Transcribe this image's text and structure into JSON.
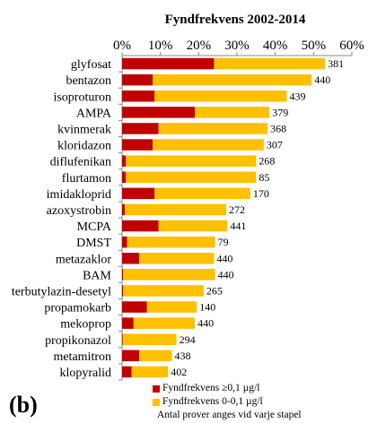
{
  "panel_label": "(b)",
  "legend": {
    "items": [
      {
        "label": "Fyndfrekvens ≥0,1 µg/l",
        "color": "#c00000"
      },
      {
        "label": "Fyndfrekvens 0-0,1 µg/l",
        "color": "#ffc000"
      }
    ],
    "note": "Antal prover anges vid varje stapel"
  },
  "chart_data": {
    "type": "bar",
    "orientation": "horizontal",
    "stacked": true,
    "title": "Fyndfrekvens 2002-2014",
    "xlabel": "",
    "ylabel": "",
    "xaxis_position": "top",
    "xlim": [
      0,
      60
    ],
    "xticks": [
      "0%",
      "10%",
      "20%",
      "30%",
      "40%",
      "50%",
      "60%"
    ],
    "grid": false,
    "legend_position": "bottom",
    "categories": [
      "glyfosat",
      "bentazon",
      "isoproturon",
      "AMPA",
      "kvinmerak",
      "kloridazon",
      "diflufenikan",
      "flurtamon",
      "imidakloprid",
      "azoxystrobin",
      "MCPA",
      "DMST",
      "metazaklor",
      "BAM",
      "terbutylazin-desetyl",
      "propamokarb",
      "mekoprop",
      "propikonazol",
      "metamitron",
      "klopyralid"
    ],
    "series": [
      {
        "name": "Fyndfrekvens ≥0,1 µg/l",
        "color": "#c00000",
        "values": [
          24,
          8,
          8.5,
          19,
          9.5,
          8,
          1,
          1,
          8.5,
          0.7,
          9.5,
          1.3,
          4.5,
          0.3,
          0.3,
          6.5,
          3,
          0.2,
          4.5,
          2.5
        ]
      },
      {
        "name": "Fyndfrekvens 0-0,1 µg/l",
        "color": "#ffc000",
        "values": [
          29,
          41.5,
          34.5,
          19.5,
          28.5,
          29,
          34,
          34,
          25,
          26.5,
          18,
          23,
          19.5,
          24,
          21,
          13,
          16,
          14,
          8.5,
          9.5
        ]
      }
    ],
    "sample_counts": [
      "381",
      "440",
      "439",
      "379",
      "368",
      "307",
      "268",
      "85",
      "170",
      "272",
      "441",
      "79",
      "440",
      "440",
      "265",
      "140",
      "440",
      "294",
      "438",
      "402"
    ]
  }
}
